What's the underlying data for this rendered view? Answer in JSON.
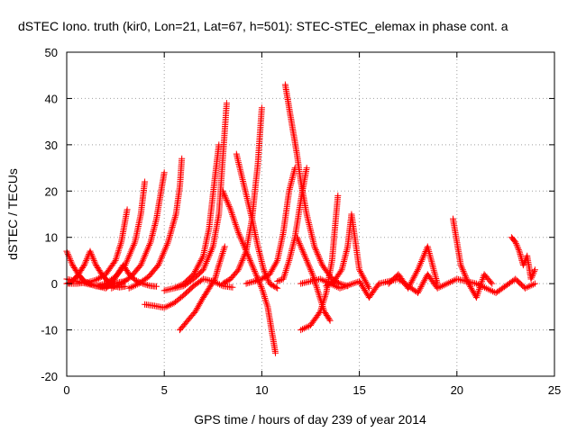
{
  "chart_data": {
    "type": "scatter",
    "title": "dSTEC Iono. truth (kir0, Lon=21, Lat=67, h=501): STEC-STEC_elemax in phase cont. a",
    "xlabel": "GPS time / hours of day 239 of year 2014",
    "ylabel": "dSTEC  / TECUs",
    "xlim": [
      0,
      25
    ],
    "ylim": [
      -20,
      50
    ],
    "x_ticks": [
      "0",
      "5",
      "10",
      "15",
      "20",
      "25"
    ],
    "y_ticks": [
      "-20",
      "-10",
      "0",
      "10",
      "20",
      "30",
      "40",
      "50"
    ],
    "grid": true,
    "marker": "+",
    "colors": {
      "series": "#ff0000",
      "grid": "#a0a0a0"
    },
    "series": [
      {
        "x": [
          0.0,
          0.3,
          0.6,
          0.9,
          1.2,
          1.5,
          1.8,
          2.1,
          2.4,
          2.7,
          3.0
        ],
        "values": [
          7,
          4,
          2,
          0.5,
          0,
          -0.5,
          -0.6,
          -0.4,
          0,
          0.3,
          0.5
        ]
      },
      {
        "x": [
          0.0,
          0.3,
          0.6,
          0.9,
          1.2,
          1.5,
          1.8,
          2.1,
          2.4,
          2.7,
          3.0
        ],
        "values": [
          0,
          0.5,
          2,
          4,
          7,
          4,
          2,
          0.5,
          -0.5,
          -0.8,
          -0.6
        ]
      },
      {
        "x": [
          0.0,
          0.5,
          1.0,
          1.5,
          2.0,
          2.3,
          2.6,
          2.9,
          3.2,
          3.5,
          3.9,
          4.3,
          4.6
        ],
        "values": [
          1,
          0.5,
          0,
          -0.5,
          -1,
          0,
          2,
          4,
          2,
          0.8,
          0,
          -0.5,
          -0.6
        ]
      },
      {
        "x": [
          0.0,
          0.5,
          1.0,
          1.5,
          2.0,
          2.5,
          2.8,
          3.1
        ],
        "values": [
          0,
          0,
          0.2,
          0.8,
          2,
          5,
          9,
          16
        ]
      },
      {
        "x": [
          1.5,
          2.0,
          2.5,
          3.0,
          3.5,
          3.8,
          4.0
        ],
        "values": [
          -0.5,
          0,
          1.5,
          4,
          9,
          15,
          22
        ]
      },
      {
        "x": [
          2.3,
          2.8,
          3.3,
          3.8,
          4.3,
          4.6,
          4.8,
          5.0
        ],
        "values": [
          -1,
          0,
          1.5,
          4,
          9,
          14,
          19,
          24
        ]
      },
      {
        "x": [
          3.2,
          3.7,
          4.2,
          4.7,
          5.2,
          5.6,
          5.8,
          5.9
        ],
        "values": [
          -1,
          0,
          1.5,
          4,
          9,
          15,
          21,
          27
        ]
      },
      {
        "x": [
          4.0,
          4.5,
          5.0,
          5.5,
          6.0,
          6.5,
          7.0,
          7.5,
          8.0,
          8.5
        ],
        "values": [
          -4.5,
          -4.8,
          -5.2,
          -4.2,
          -2.5,
          -0.5,
          1,
          0.5,
          -0.5,
          -0.8
        ]
      },
      {
        "x": [
          5.0,
          5.5,
          6.0,
          6.5,
          7.0,
          7.3,
          7.6,
          7.8
        ],
        "values": [
          -1.5,
          -1,
          0,
          2,
          6,
          12,
          23,
          30
        ]
      },
      {
        "x": [
          5.5,
          6.0,
          6.5,
          7.0,
          7.5,
          7.8,
          8.0,
          8.2
        ],
        "values": [
          -1,
          -0.5,
          1,
          3,
          8,
          15,
          27,
          39
        ]
      },
      {
        "x": [
          5.8,
          6.2,
          6.6,
          7.0,
          7.3,
          7.6,
          7.8,
          8.1
        ],
        "values": [
          -10,
          -8,
          -6,
          -3,
          -1,
          1,
          4,
          8
        ]
      },
      {
        "x": [
          8.0,
          8.4,
          8.8,
          9.2,
          9.6,
          10.0,
          10.3,
          10.5,
          10.7
        ],
        "values": [
          20,
          16,
          11,
          7,
          3,
          -1,
          -5,
          -10,
          -15
        ]
      },
      {
        "x": [
          8.7,
          9.1,
          9.5,
          9.8,
          10.1,
          10.4,
          10.8
        ],
        "values": [
          28,
          21,
          14,
          8,
          3,
          0,
          -1
        ]
      },
      {
        "x": [
          8.0,
          8.4,
          8.8,
          9.2,
          9.5,
          9.8,
          10.0
        ],
        "values": [
          0,
          1,
          3,
          7,
          14,
          26,
          38
        ]
      },
      {
        "x": [
          9.2,
          9.6,
          10.0,
          10.4,
          10.8,
          11.1,
          11.4,
          11.7
        ],
        "values": [
          0,
          0.5,
          1,
          2,
          5,
          11,
          20,
          25
        ]
      },
      {
        "x": [
          10.8,
          11.1,
          11.4,
          11.7,
          12.0,
          12.3
        ],
        "values": [
          0.5,
          1,
          5,
          10,
          18,
          25
        ]
      },
      {
        "x": [
          11.2,
          11.4,
          11.6,
          11.8,
          12.0,
          12.3,
          12.7,
          13.1,
          13.6,
          14.0,
          14.4
        ],
        "values": [
          43,
          38,
          33,
          28,
          22,
          15,
          8,
          4,
          1,
          0,
          -0.5
        ]
      },
      {
        "x": [
          11.8,
          12.2,
          12.6,
          12.9,
          13.2,
          13.5
        ],
        "values": [
          10,
          6,
          2,
          -2,
          -6,
          -8
        ]
      },
      {
        "x": [
          12.0,
          12.5,
          13.0,
          13.3,
          13.6,
          13.9
        ],
        "values": [
          -10,
          -9,
          -6,
          -2,
          5,
          19
        ]
      },
      {
        "x": [
          13.3,
          13.7,
          14.1,
          14.4,
          14.6,
          15.0,
          15.5
        ],
        "values": [
          -0.5,
          0.5,
          3,
          8,
          15,
          3,
          -1
        ]
      },
      {
        "x": [
          12.0,
          13.0,
          14.0,
          15.0,
          15.5,
          16.0,
          17.0,
          18.0,
          18.5,
          19.0,
          20.0,
          21.0,
          22.0,
          23.0,
          23.5,
          24.0
        ],
        "values": [
          0,
          1,
          -1,
          0.5,
          -3,
          0,
          1,
          -2,
          2,
          -1,
          1,
          0,
          -2,
          1,
          -1,
          0
        ]
      },
      {
        "x": [
          16.5,
          17.0,
          17.5,
          18.0,
          18.5,
          19.0
        ],
        "values": [
          0,
          2,
          -1,
          3,
          8,
          0
        ]
      },
      {
        "x": [
          19.8,
          20.2,
          20.6,
          21.0,
          21.4,
          21.8
        ],
        "values": [
          14,
          4,
          0,
          -3,
          2,
          0
        ]
      },
      {
        "x": [
          22.8,
          23.0,
          23.2,
          23.4,
          23.6,
          23.8,
          24.0
        ],
        "values": [
          10,
          9,
          7,
          4,
          6,
          1,
          3
        ]
      }
    ]
  }
}
